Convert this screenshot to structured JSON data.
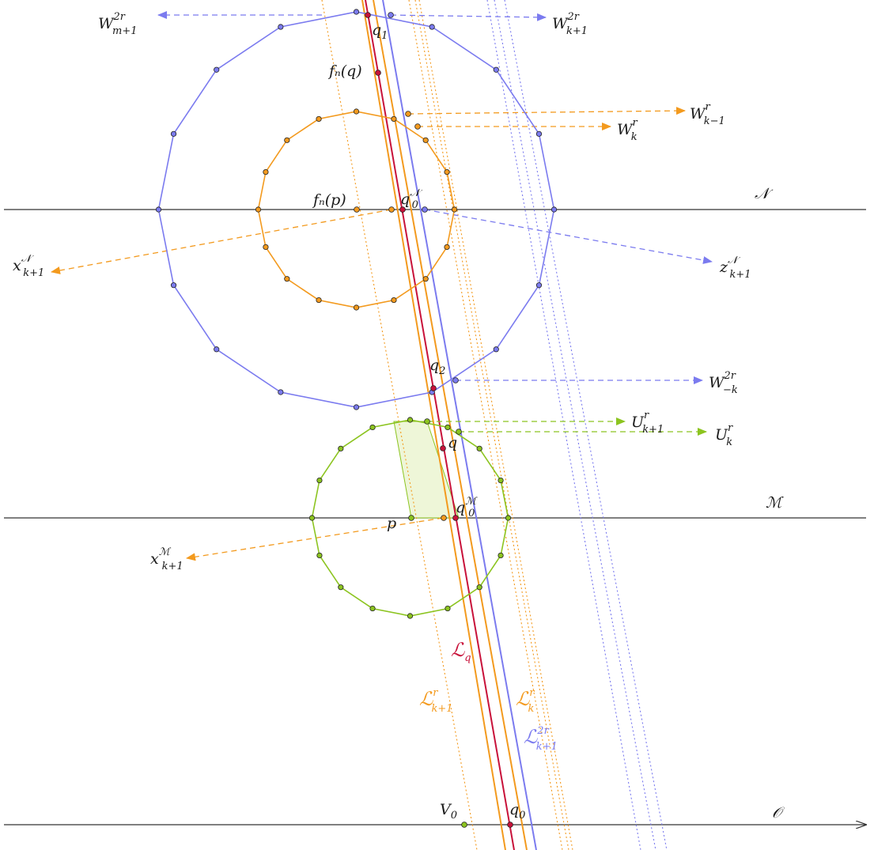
{
  "colors": {
    "blue": "#7b7bef",
    "orange": "#f39a1e",
    "green": "#8cc420",
    "red": "#c8123a",
    "axis": "#333333",
    "green_fill": "#eef6d8"
  },
  "labels": {
    "W_m1": {
      "base": "W",
      "sup": "2r",
      "sub": "m+1"
    },
    "W_k1": {
      "base": "W",
      "sup": "2r",
      "sub": "k+1"
    },
    "W_km1": {
      "base": "W",
      "sup": "r",
      "sub": "k−1"
    },
    "W_k": {
      "base": "W",
      "sup": "r",
      "sub": "k"
    },
    "W_mk": {
      "base": "W",
      "sup": "2r",
      "sub": "−k"
    },
    "U_k1": {
      "base": "U",
      "sup": "r",
      "sub": "k+1"
    },
    "U_k": {
      "base": "U",
      "sup": "r",
      "sub": "k"
    },
    "x_N": {
      "base": "x",
      "sup": "𝒩",
      "sub": "k+1"
    },
    "z_N": {
      "base": "z",
      "sup": "𝒩",
      "sub": "k+1"
    },
    "x_M": {
      "base": "x",
      "sup": "ℳ",
      "sub": "k+1"
    },
    "q1": {
      "base": "q",
      "sub": "1"
    },
    "q2": {
      "base": "q",
      "sub": "2"
    },
    "q0N": {
      "base": "q",
      "sup": "𝒩",
      "sub": "0"
    },
    "q0M": {
      "base": "q",
      "sup": "ℳ",
      "sub": "0"
    },
    "q0": {
      "base": "q",
      "sub": "0"
    },
    "V0": {
      "base": "V",
      "sub": "0"
    },
    "q": "q",
    "p": "p",
    "fnq": "fₙ(q)",
    "fnp": "fₙ(p)",
    "N": "𝒩",
    "M": "ℳ",
    "O": "𝒪",
    "Lq": {
      "base": "ℒ",
      "sub": "q"
    },
    "Lk1r": {
      "base": "ℒ",
      "sup": "r",
      "sub": "k+1"
    },
    "Lkr": {
      "base": "ℒ",
      "sup": "r",
      "sub": "k"
    },
    "Lk1_2r": {
      "base": "ℒ",
      "sup": "2r",
      "sub": "k+1"
    }
  }
}
